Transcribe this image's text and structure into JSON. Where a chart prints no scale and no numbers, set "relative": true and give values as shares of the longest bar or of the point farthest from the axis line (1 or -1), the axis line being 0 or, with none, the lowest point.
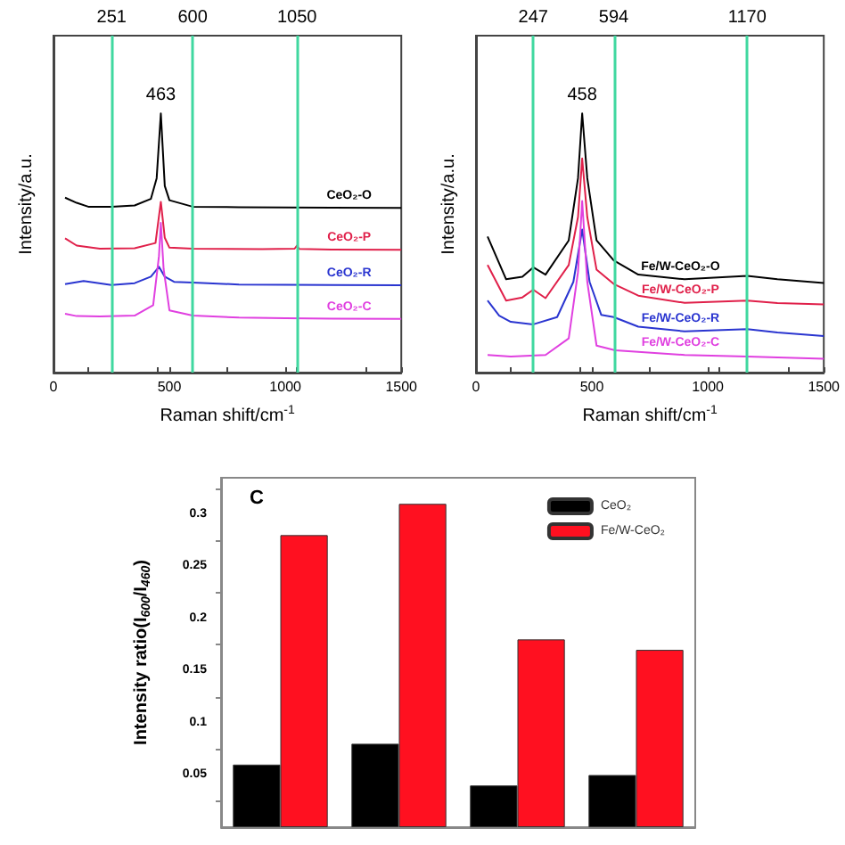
{
  "chart_data": [
    {
      "type": "line",
      "relative": true,
      "xlabel": "Raman shift/cm$^{-1}$",
      "ylabel": "Intensity/a.u.",
      "xlim": [
        0,
        1500
      ],
      "xticks": [
        0,
        500,
        1000,
        1500
      ],
      "grid": false,
      "legend": false,
      "marker": "none",
      "line_style": "solid",
      "series": [
        {
          "name": "CeO₂-O",
          "color": "#000000",
          "x": [
            50,
            100,
            150,
            250,
            350,
            420,
            445,
            463,
            480,
            500,
            600,
            800,
            1000,
            1200,
            1500
          ],
          "values": [
            0.675,
            0.655,
            0.64,
            0.64,
            0.645,
            0.67,
            0.75,
            1.0,
            0.72,
            0.665,
            0.64,
            0.638,
            0.637,
            0.636,
            0.635
          ]
        },
        {
          "name": "CeO₂-P",
          "color": "#e0204a",
          "x": [
            50,
            100,
            200,
            350,
            440,
            463,
            480,
            500,
            600,
            900,
            1040,
            1050,
            1060,
            1200,
            1500
          ],
          "values": [
            0.518,
            0.49,
            0.478,
            0.48,
            0.5,
            0.659,
            0.52,
            0.482,
            0.478,
            0.476,
            0.478,
            0.49,
            0.477,
            0.475,
            0.474
          ]
        },
        {
          "name": "CeO₂-R",
          "color": "#2a35d0",
          "x": [
            50,
            130,
            250,
            350,
            420,
            455,
            480,
            520,
            600,
            800,
            1000,
            1200,
            1500
          ],
          "values": [
            0.341,
            0.353,
            0.338,
            0.345,
            0.37,
            0.408,
            0.37,
            0.35,
            0.347,
            0.34,
            0.339,
            0.338,
            0.337
          ]
        },
        {
          "name": "CeO₂-C",
          "color": "#e040e0",
          "x": [
            50,
            100,
            200,
            350,
            430,
            455,
            463,
            475,
            500,
            600,
            800,
            1000,
            1200,
            1500
          ],
          "values": [
            0.227,
            0.218,
            0.217,
            0.22,
            0.26,
            0.45,
            0.578,
            0.4,
            0.24,
            0.22,
            0.212,
            0.21,
            0.208,
            0.207
          ]
        }
      ],
      "ref_lines": [
        {
          "axis": "x",
          "value": 251,
          "label": "251",
          "color": "#40d8a0"
        },
        {
          "axis": "x",
          "value": 600,
          "label": "600",
          "color": "#40d8a0"
        },
        {
          "axis": "x",
          "value": 1050,
          "label": "1050",
          "color": "#40d8a0"
        }
      ],
      "annotations": [
        {
          "text": "463",
          "x": 463,
          "y": 1.0
        }
      ]
    },
    {
      "type": "line",
      "relative": true,
      "xlabel": "Raman shift/cm$^{-1}$",
      "ylabel": "Intensity/a.u.",
      "xlim": [
        0,
        1500
      ],
      "xticks": [
        0,
        500,
        1000,
        1500
      ],
      "grid": false,
      "legend": false,
      "marker": "none",
      "line_style": "solid",
      "series": [
        {
          "name": "Fe/W-CeO₂-O",
          "color": "#000000",
          "x": [
            50,
            130,
            200,
            247,
            300,
            400,
            440,
            458,
            480,
            520,
            594,
            700,
            900,
            1170,
            1300,
            1500
          ],
          "values": [
            0.525,
            0.36,
            0.37,
            0.406,
            0.378,
            0.51,
            0.75,
            1.0,
            0.75,
            0.51,
            0.433,
            0.378,
            0.36,
            0.373,
            0.36,
            0.346
          ]
        },
        {
          "name": "Fe/W-CeO₂-P",
          "color": "#e0204a",
          "x": [
            50,
            130,
            200,
            247,
            300,
            400,
            440,
            458,
            480,
            520,
            594,
            700,
            900,
            1170,
            1300,
            1500
          ],
          "values": [
            0.415,
            0.278,
            0.29,
            0.32,
            0.287,
            0.415,
            0.6,
            0.826,
            0.6,
            0.397,
            0.342,
            0.297,
            0.269,
            0.278,
            0.268,
            0.263
          ]
        },
        {
          "name": "Fe/W-CeO₂-R",
          "color": "#2a35d0",
          "x": [
            50,
            100,
            150,
            247,
            350,
            420,
            458,
            490,
            540,
            594,
            700,
            900,
            1170,
            1300,
            1500
          ],
          "values": [
            0.278,
            0.22,
            0.196,
            0.186,
            0.214,
            0.35,
            0.552,
            0.35,
            0.223,
            0.214,
            0.177,
            0.159,
            0.168,
            0.155,
            0.141
          ]
        },
        {
          "name": "Fe/W-CeO₂-C",
          "color": "#e040e0",
          "x": [
            50,
            150,
            300,
            400,
            440,
            458,
            480,
            520,
            600,
            900,
            1170,
            1500
          ],
          "values": [
            0.068,
            0.062,
            0.068,
            0.132,
            0.388,
            0.662,
            0.35,
            0.104,
            0.086,
            0.068,
            0.062,
            0.053
          ]
        }
      ],
      "ref_lines": [
        {
          "axis": "x",
          "value": 247,
          "label": "247",
          "color": "#40d8a0"
        },
        {
          "axis": "x",
          "value": 594,
          "label": "594",
          "color": "#40d8a0"
        },
        {
          "axis": "x",
          "value": 1170,
          "label": "1170",
          "color": "#40d8a0"
        }
      ],
      "annotations": [
        {
          "text": "458",
          "x": 458,
          "y": 1.0
        }
      ]
    },
    {
      "type": "bar",
      "ylabel": "Intensity ratio(I$_{600}$/I$_{460}$)",
      "categories": [
        null,
        null,
        null,
        null
      ],
      "ylim": [
        0,
        0.335
      ],
      "yticks": [
        0.05,
        0.1,
        0.15,
        0.2,
        0.25,
        0.3
      ],
      "grid": false,
      "legend": "top right",
      "series": [
        {
          "name": "CeO₂",
          "color": "#000000",
          "values": [
            0.06,
            0.08,
            0.04,
            0.05
          ]
        },
        {
          "name": "Fe/W-CeO₂",
          "color": "#ff1020",
          "values": [
            0.28,
            0.31,
            0.18,
            0.17
          ]
        }
      ],
      "annotations": [
        "C"
      ]
    }
  ]
}
